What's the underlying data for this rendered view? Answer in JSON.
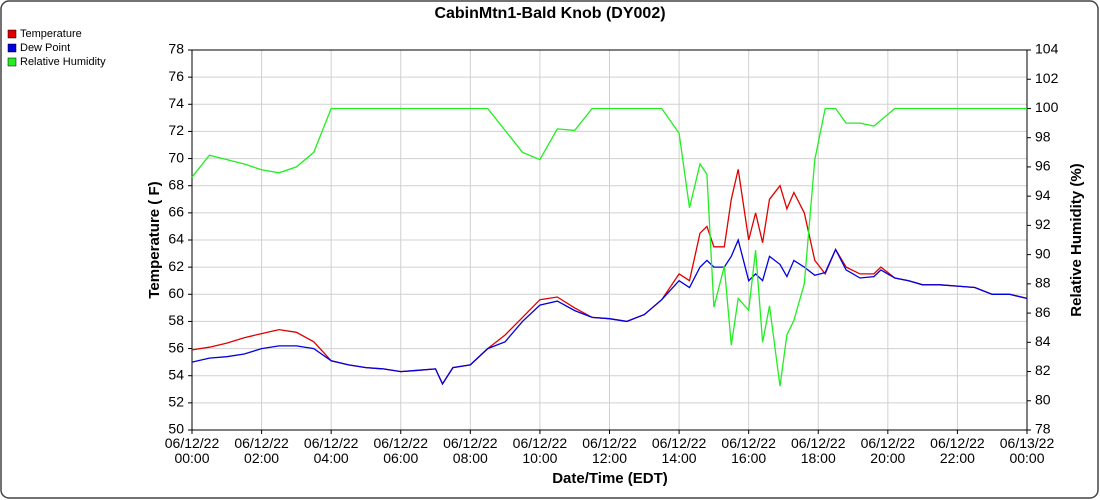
{
  "chart_data": {
    "type": "line",
    "title": "CabinMtn1-Bald Knob (DY002)",
    "x_label": "Date/Time (EDT)",
    "y_label": "Temperature ( F)",
    "y2_label": "Relative Humidity (%)",
    "x": [
      0,
      0.5,
      1,
      1.5,
      2,
      2.5,
      3,
      3.5,
      4,
      4.5,
      5,
      5.5,
      6,
      6.5,
      7,
      7.2,
      7.5,
      8,
      8.5,
      9,
      9.5,
      10,
      10.5,
      11,
      11.5,
      12,
      12.5,
      13,
      13.5,
      14,
      14.3,
      14.6,
      14.8,
      15,
      15.3,
      15.5,
      15.7,
      16,
      16.2,
      16.4,
      16.6,
      16.9,
      17.1,
      17.3,
      17.6,
      17.9,
      18.2,
      18.5,
      18.8,
      19.2,
      19.6,
      19.8,
      20.2,
      20.6,
      21,
      21.5,
      22,
      22.5,
      23,
      23.5,
      24
    ],
    "series": [
      {
        "name": "Temperature",
        "color": "#e00000",
        "values": [
          55.9,
          56.1,
          56.4,
          56.8,
          57.1,
          57.4,
          57.2,
          56.5,
          55.1,
          54.8,
          54.6,
          54.5,
          54.3,
          54.4,
          54.5,
          53.4,
          54.6,
          54.8,
          56.0,
          57.0,
          58.3,
          59.6,
          59.8,
          59.0,
          58.3,
          58.2,
          58.0,
          58.5,
          59.6,
          61.5,
          61.0,
          64.5,
          65.0,
          63.5,
          63.5,
          67.0,
          69.2,
          64.0,
          66.0,
          63.8,
          67.0,
          68.0,
          66.3,
          67.5,
          66.0,
          62.5,
          61.5,
          63.3,
          62.0,
          61.5,
          61.5,
          62.0,
          61.2,
          61.0,
          60.7,
          60.7,
          60.6,
          60.5,
          60.0,
          60.0,
          59.7
        ]
      },
      {
        "name": "Dew Point",
        "color": "#0000e0",
        "values": [
          55.0,
          55.3,
          55.4,
          55.6,
          56.0,
          56.2,
          56.2,
          56.0,
          55.1,
          54.8,
          54.6,
          54.5,
          54.3,
          54.4,
          54.5,
          53.4,
          54.6,
          54.8,
          56.0,
          56.5,
          58.0,
          59.2,
          59.5,
          58.8,
          58.3,
          58.2,
          58.0,
          58.5,
          59.6,
          61.0,
          60.5,
          62.0,
          62.5,
          62.0,
          62.0,
          62.8,
          64.0,
          61.0,
          61.5,
          61.0,
          62.8,
          62.2,
          61.3,
          62.5,
          62.0,
          61.4,
          61.6,
          63.3,
          61.8,
          61.2,
          61.3,
          61.8,
          61.2,
          61.0,
          60.7,
          60.7,
          60.6,
          60.5,
          60.0,
          60.0,
          59.7
        ]
      },
      {
        "name": "Relative Humidity",
        "color": "#22ee22",
        "axis": "y2",
        "values": [
          95.3,
          96.8,
          96.5,
          96.2,
          95.8,
          95.6,
          96.0,
          97.0,
          100,
          100,
          100,
          100,
          100,
          100,
          100,
          100,
          100,
          100,
          100,
          98.5,
          97.0,
          96.5,
          98.6,
          98.5,
          100,
          100,
          100,
          100,
          100,
          98.3,
          93.2,
          96.2,
          95.5,
          86.4,
          89.2,
          83.8,
          87.0,
          86.2,
          90.3,
          84.0,
          86.5,
          81.0,
          84.5,
          85.5,
          88.0,
          96.5,
          100,
          100,
          99.0,
          99.0,
          98.8,
          99.2,
          100,
          100,
          100,
          100,
          100,
          100,
          100,
          100,
          100
        ]
      }
    ],
    "xlim": [
      0,
      24
    ],
    "xticks": [
      {
        "value": 0,
        "label": "06/12/22\n00:00"
      },
      {
        "value": 2,
        "label": "06/12/22\n02:00"
      },
      {
        "value": 4,
        "label": "06/12/22\n04:00"
      },
      {
        "value": 6,
        "label": "06/12/22\n06:00"
      },
      {
        "value": 8,
        "label": "06/12/22\n08:00"
      },
      {
        "value": 10,
        "label": "06/12/22\n10:00"
      },
      {
        "value": 12,
        "label": "06/12/22\n12:00"
      },
      {
        "value": 14,
        "label": "06/12/22\n14:00"
      },
      {
        "value": 16,
        "label": "06/12/22\n16:00"
      },
      {
        "value": 18,
        "label": "06/12/22\n18:00"
      },
      {
        "value": 20,
        "label": "06/12/22\n20:00"
      },
      {
        "value": 22,
        "label": "06/12/22\n22:00"
      },
      {
        "value": 24,
        "label": "06/13/22\n00:00"
      }
    ],
    "ylim": [
      50,
      78
    ],
    "yticks": [
      50,
      52,
      54,
      56,
      58,
      60,
      62,
      64,
      66,
      68,
      70,
      72,
      74,
      76,
      78
    ],
    "y2lim": [
      78,
      104
    ],
    "y2ticks": [
      78,
      80,
      82,
      84,
      86,
      88,
      90,
      92,
      94,
      96,
      98,
      100,
      102,
      104
    ],
    "grid": true,
    "legend": "top-left"
  }
}
